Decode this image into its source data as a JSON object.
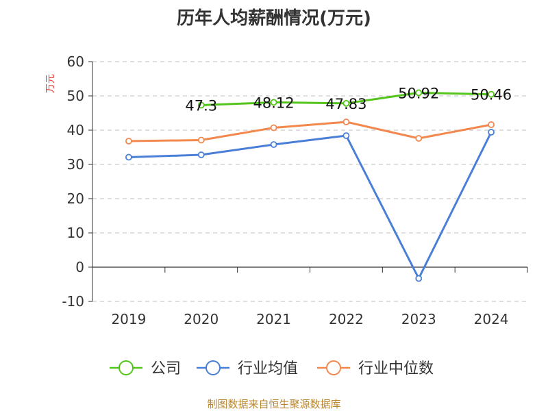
{
  "chart_data": {
    "type": "line",
    "title": "历年人均薪酬情况(万元)",
    "ylabel": "万元",
    "xlabel": "",
    "categories": [
      "2019",
      "2020",
      "2021",
      "2022",
      "2023",
      "2024"
    ],
    "ylim": [
      -10,
      60
    ],
    "yticks": [
      -10,
      0,
      10,
      20,
      30,
      40,
      50,
      60
    ],
    "grid": true,
    "legend_position": "bottom",
    "series": [
      {
        "name": "公司",
        "color": "#52c41a",
        "values": [
          null,
          47.3,
          48.12,
          47.83,
          50.92,
          50.46
        ],
        "labels": [
          "",
          "47.3",
          "48.12",
          "47.83",
          "50.92",
          "50.46"
        ],
        "show_labels": true
      },
      {
        "name": "行业均值",
        "color": "#4a7fd8",
        "values": [
          32.1,
          32.8,
          35.8,
          38.4,
          -3.3,
          39.4
        ],
        "show_labels": false
      },
      {
        "name": "行业中位数",
        "color": "#f2884e",
        "values": [
          36.8,
          37.1,
          40.7,
          42.4,
          37.6,
          41.6
        ],
        "show_labels": false
      }
    ]
  },
  "source": {
    "text": "制图数据来自恒生聚源数据库",
    "color": "#b8862c"
  },
  "colors": {
    "unit_label": "#e53935",
    "grid": "#cccccc",
    "axis": "#333333"
  }
}
